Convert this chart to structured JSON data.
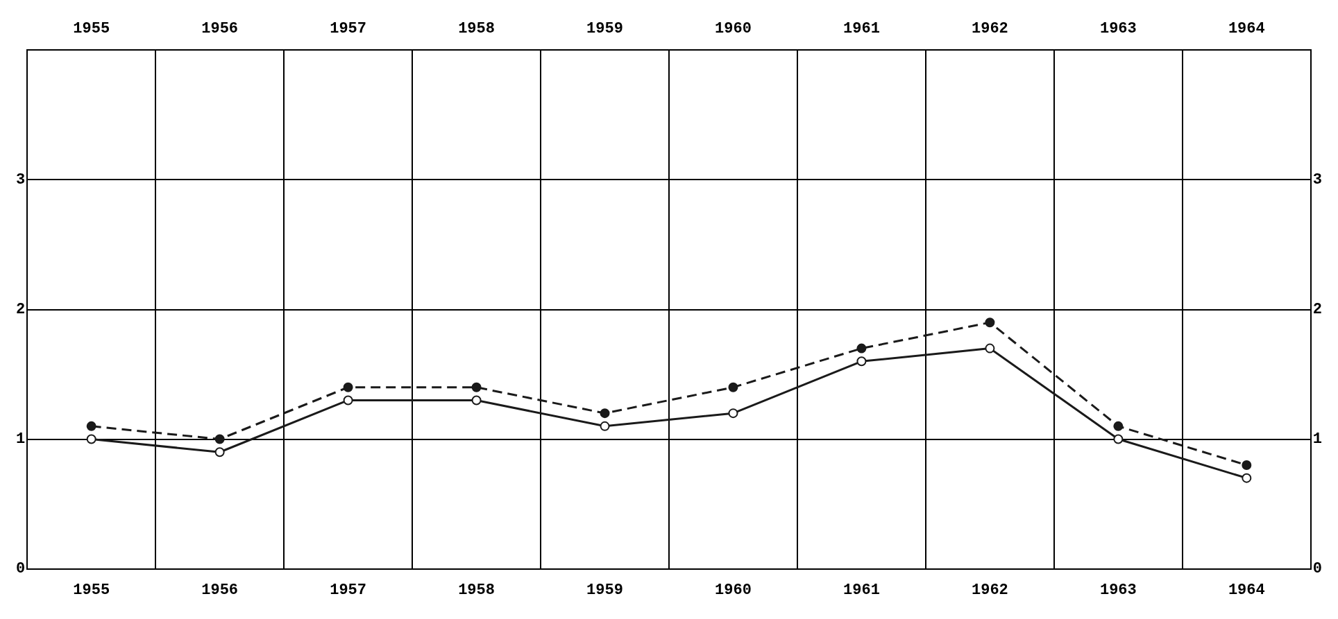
{
  "chart_data": {
    "type": "line",
    "categories": [
      "1955",
      "1956",
      "1957",
      "1958",
      "1959",
      "1960",
      "1961",
      "1962",
      "1963",
      "1964"
    ],
    "series": [
      {
        "color": "#1a1a1a",
        "line_style": "dashed",
        "marker": "circle",
        "values": [
          1.1,
          1.0,
          1.4,
          1.4,
          1.2,
          1.4,
          1.7,
          1.9,
          1.1,
          0.8
        ]
      },
      {
        "color": "#1a1a1a",
        "line_style": "solid",
        "marker": "circle",
        "values": [
          1.0,
          0.9,
          1.3,
          1.3,
          1.1,
          1.2,
          1.6,
          1.7,
          1.0,
          0.7
        ]
      }
    ],
    "ylim": [
      0,
      4
    ],
    "yticks": [
      0,
      1,
      2,
      3
    ],
    "y2lim": [
      0,
      4
    ],
    "y2ticks": [
      0,
      1,
      2,
      3
    ],
    "grid": true,
    "legend": false
  }
}
